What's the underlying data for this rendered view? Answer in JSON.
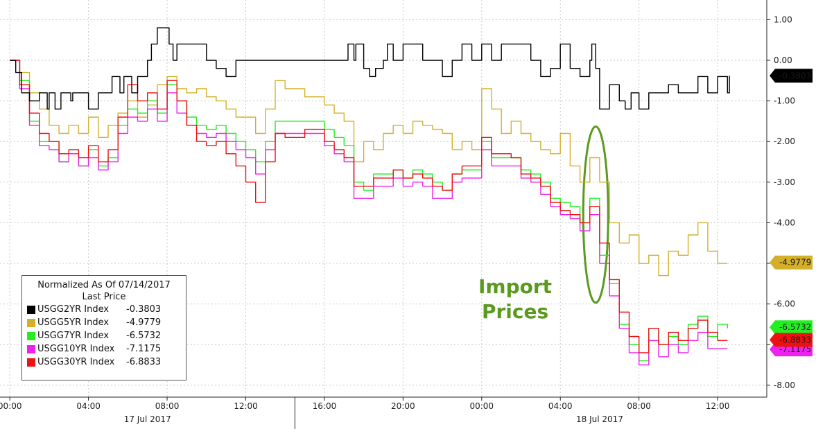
{
  "chart_data": {
    "type": "line",
    "legend": {
      "title": "Normalized As Of 07/14/2017",
      "subtitle": "Last Price",
      "placement": "bottom-left"
    },
    "series": [
      {
        "name": "USGG2YR Index",
        "color": "#000000",
        "last": "-0.3803",
        "last_value": -0.3803,
        "x": [
          0,
          0.3,
          0.6,
          1,
          1.5,
          1.9,
          2,
          2.3,
          2.6,
          3.1,
          3.2,
          3.5,
          4,
          4.5,
          5.1,
          5.2,
          5.6,
          5.8,
          6.2,
          6.5,
          7,
          7.2,
          7.5,
          8,
          8.1,
          8.3,
          8.5,
          9,
          9.5,
          10,
          10.5,
          11,
          11.5,
          12,
          12.5,
          13,
          14,
          14.5,
          15,
          16,
          17,
          17.2,
          17.5,
          17.6,
          18,
          18.3,
          18.6,
          19,
          19.2,
          19.5,
          20,
          21,
          21.5,
          22,
          22.5,
          23,
          23.5,
          24,
          24.5,
          25,
          26,
          26.5,
          27,
          27.5,
          28,
          28.5,
          29,
          29.5,
          29.6,
          29.8,
          30,
          30.5,
          31,
          31.3,
          31.6,
          32,
          32.5,
          33,
          33.5,
          34,
          34.5,
          35,
          35.5,
          36,
          36.5,
          36.6
        ],
        "y": [
          0,
          -0.3,
          -0.8,
          -1.0,
          -0.8,
          -1.2,
          -0.8,
          -1.2,
          -0.8,
          -1.0,
          -0.8,
          -0.8,
          -1.2,
          -0.8,
          -0.8,
          -0.4,
          -0.8,
          -0.4,
          -0.8,
          -0.4,
          0,
          0.4,
          0.8,
          0.8,
          0.4,
          0,
          0.4,
          0.4,
          0.4,
          0,
          -0.2,
          -0.4,
          0,
          0,
          0,
          0,
          0,
          0,
          0,
          0,
          0,
          0.4,
          0,
          0.4,
          -0.2,
          -0.4,
          -0.2,
          0,
          0.4,
          0,
          0.4,
          0,
          0,
          -0.4,
          0,
          0.4,
          0,
          0.4,
          0,
          0.4,
          0.4,
          0,
          -0.4,
          -0.2,
          0.4,
          -0.2,
          -0.4,
          0,
          0.4,
          -0.2,
          -1.2,
          -0.6,
          -1.0,
          -1.2,
          -0.8,
          -1.2,
          -0.8,
          -0.8,
          -0.6,
          -0.8,
          -0.8,
          -0.4,
          -0.8,
          -0.4,
          -0.8,
          -0.38
        ]
      },
      {
        "name": "USGG5YR Index",
        "color": "#d4b02a",
        "last": "-4.9779",
        "last_value": -4.9779,
        "x": [
          0,
          0.5,
          1,
          1.5,
          2,
          2.5,
          3,
          3.5,
          4,
          4.5,
          5,
          5.5,
          6,
          6.5,
          7,
          7.5,
          8,
          8.5,
          9,
          9.5,
          10,
          10.5,
          11,
          11.5,
          12,
          12.5,
          13,
          13.5,
          14,
          15,
          16,
          16.5,
          17,
          17.5,
          18,
          18.5,
          19,
          19.5,
          20,
          20.5,
          21,
          21.5,
          22,
          22.5,
          23,
          23.5,
          24,
          24.5,
          25,
          25.5,
          26,
          26.5,
          27,
          27.5,
          28,
          28.5,
          29,
          29.5,
          30,
          30.5,
          31,
          31.5,
          32,
          32.5,
          33,
          33.5,
          34,
          34.5,
          35,
          35.5,
          36,
          36.5
        ],
        "y": [
          0,
          -0.3,
          -0.8,
          -1.2,
          -1.6,
          -1.8,
          -1.6,
          -1.8,
          -1.4,
          -1.9,
          -1.6,
          -1.3,
          -1.0,
          -1.4,
          -1.1,
          -0.6,
          -0.4,
          -0.7,
          -0.8,
          -0.7,
          -0.9,
          -1.0,
          -1.2,
          -1.4,
          -1.4,
          -1.8,
          -1.2,
          -0.5,
          -0.7,
          -0.9,
          -1.1,
          -1.3,
          -1.5,
          -2.5,
          -2.0,
          -2.2,
          -1.8,
          -1.6,
          -1.8,
          -1.5,
          -1.6,
          -1.7,
          -1.8,
          -2.2,
          -2.0,
          -2.2,
          -0.7,
          -1.2,
          -1.8,
          -1.5,
          -1.8,
          -2.0,
          -2.2,
          -2.3,
          -1.8,
          -2.6,
          -3.0,
          -2.4,
          -3.0,
          -4.0,
          -4.5,
          -4.3,
          -5.0,
          -4.8,
          -5.3,
          -4.7,
          -4.8,
          -4.3,
          -4.0,
          -4.7,
          -5.0,
          -5.0
        ]
      },
      {
        "name": "USGG7YR Index",
        "color": "#22ee22",
        "last": "-6.5732",
        "last_value": -6.5732,
        "x": [
          0,
          0.5,
          1,
          1.5,
          2,
          2.5,
          3,
          3.5,
          4,
          4.5,
          5,
          5.5,
          6,
          6.5,
          7,
          7.5,
          8,
          8.5,
          9,
          9.5,
          10,
          10.5,
          11,
          11.5,
          12,
          12.5,
          13,
          13.5,
          14,
          15,
          16,
          16.5,
          17,
          17.5,
          18,
          18.5,
          19,
          19.5,
          20,
          20.5,
          21,
          21.5,
          22,
          22.5,
          23,
          23.5,
          24,
          24.5,
          25,
          25.5,
          26,
          26.5,
          27,
          27.5,
          28,
          28.5,
          29,
          29.5,
          30,
          30.5,
          31,
          31.5,
          32,
          32.5,
          33,
          33.5,
          34,
          34.5,
          35,
          35.5,
          36,
          36.5
        ],
        "y": [
          0,
          -0.5,
          -1.5,
          -2.0,
          -2.0,
          -2.5,
          -2.3,
          -2.6,
          -2.2,
          -2.6,
          -2.4,
          -1.6,
          -1.2,
          -1.3,
          -1.0,
          -1.3,
          -0.6,
          -1.0,
          -1.4,
          -1.6,
          -1.7,
          -1.6,
          -1.8,
          -2.0,
          -2.2,
          -2.5,
          -2.0,
          -1.5,
          -1.5,
          -1.5,
          -1.7,
          -1.9,
          -2.1,
          -3.0,
          -3.2,
          -2.8,
          -2.8,
          -2.7,
          -2.9,
          -2.7,
          -2.8,
          -3.0,
          -3.2,
          -2.8,
          -2.7,
          -2.7,
          -2.0,
          -2.4,
          -2.4,
          -2.4,
          -2.7,
          -2.8,
          -3.0,
          -3.4,
          -3.5,
          -3.6,
          -4.0,
          -3.4,
          -4.8,
          -5.5,
          -6.5,
          -7.0,
          -7.4,
          -6.6,
          -7.0,
          -6.8,
          -7.0,
          -6.5,
          -6.3,
          -6.8,
          -6.5,
          -6.6
        ]
      },
      {
        "name": "USGG10YR Index",
        "color": "#ee22ee",
        "last": "-7.1175",
        "last_value": -7.1175,
        "x": [
          0,
          0.5,
          1,
          1.5,
          2,
          2.5,
          3,
          3.5,
          4,
          4.5,
          5,
          5.5,
          6,
          6.5,
          7,
          7.5,
          8,
          8.5,
          9,
          9.5,
          10,
          10.5,
          11,
          11.5,
          12,
          12.5,
          13,
          13.5,
          14,
          15,
          16,
          16.5,
          17,
          17.5,
          18,
          18.5,
          19,
          19.5,
          20,
          20.5,
          21,
          21.5,
          22,
          22.5,
          23,
          23.5,
          24,
          24.5,
          25,
          25.5,
          26,
          26.5,
          27,
          27.5,
          28,
          28.5,
          29,
          29.5,
          30,
          30.5,
          31,
          31.5,
          32,
          32.5,
          33,
          33.5,
          34,
          34.5,
          35,
          35.5,
          36,
          36.5
        ],
        "y": [
          0,
          -0.7,
          -1.6,
          -2.1,
          -2.2,
          -2.5,
          -2.3,
          -2.6,
          -2.4,
          -2.7,
          -2.5,
          -1.8,
          -1.4,
          -1.5,
          -1.2,
          -1.5,
          -0.8,
          -1.3,
          -1.6,
          -1.8,
          -1.9,
          -1.8,
          -2.0,
          -2.2,
          -2.4,
          -2.8,
          -2.2,
          -1.8,
          -1.8,
          -1.8,
          -2.1,
          -2.3,
          -2.5,
          -3.4,
          -3.4,
          -3.1,
          -3.1,
          -2.9,
          -3.1,
          -3.0,
          -3.1,
          -3.4,
          -3.4,
          -3.0,
          -2.9,
          -2.9,
          -2.2,
          -2.6,
          -2.6,
          -2.6,
          -2.9,
          -3.0,
          -3.3,
          -3.6,
          -3.8,
          -3.9,
          -4.2,
          -3.8,
          -5.0,
          -5.8,
          -6.6,
          -7.2,
          -7.5,
          -6.9,
          -7.3,
          -7.0,
          -7.2,
          -6.9,
          -6.7,
          -7.1,
          -7.1,
          -7.1
        ]
      },
      {
        "name": "USGG30YR Index",
        "color": "#ee1111",
        "last": "-6.8833",
        "last_value": -6.8833,
        "x": [
          0,
          0.5,
          1,
          1.5,
          2,
          2.5,
          3,
          3.5,
          4,
          4.5,
          5,
          5.5,
          6,
          6.5,
          7,
          7.5,
          8,
          8.5,
          9,
          9.5,
          10,
          10.5,
          11,
          11.5,
          12,
          12.5,
          13,
          13.5,
          14,
          15,
          16,
          16.5,
          17,
          17.5,
          18,
          18.5,
          19,
          19.5,
          20,
          20.5,
          21,
          21.5,
          22,
          22.5,
          23,
          23.5,
          24,
          24.5,
          25,
          25.5,
          26,
          26.5,
          27,
          27.5,
          28,
          28.5,
          29,
          29.5,
          30,
          30.5,
          31,
          31.5,
          32,
          32.5,
          33,
          33.5,
          34,
          34.5,
          35,
          35.5,
          36,
          36.5
        ],
        "y": [
          0,
          -0.6,
          -1.3,
          -1.8,
          -2.0,
          -2.3,
          -2.2,
          -2.4,
          -2.1,
          -2.5,
          -2.2,
          -1.4,
          -0.6,
          -1.0,
          -0.8,
          -1.2,
          -0.5,
          -1.0,
          -1.6,
          -2.0,
          -2.1,
          -2.0,
          -2.3,
          -2.6,
          -3.0,
          -3.5,
          -2.5,
          -1.8,
          -1.9,
          -1.7,
          -2.0,
          -2.2,
          -2.4,
          -3.1,
          -3.1,
          -2.9,
          -2.9,
          -2.7,
          -2.9,
          -2.8,
          -2.9,
          -3.1,
          -3.2,
          -2.8,
          -2.6,
          -2.6,
          -1.9,
          -2.3,
          -2.3,
          -2.4,
          -2.8,
          -2.9,
          -3.1,
          -3.5,
          -3.7,
          -3.8,
          -4.0,
          -3.6,
          -4.5,
          -5.4,
          -6.2,
          -6.8,
          -7.2,
          -6.6,
          -7.0,
          -6.7,
          -6.9,
          -6.6,
          -6.4,
          -6.7,
          -6.9,
          -6.9
        ]
      }
    ],
    "y_axis": {
      "ticks": [
        "1.00",
        "0.00",
        "-1.00",
        "-2.00",
        "-3.00",
        "-4.00",
        "-6.00",
        "-8.00"
      ],
      "tick_values": [
        1,
        0,
        -1,
        -2,
        -3,
        -4,
        -6,
        -8
      ],
      "ylim": [
        -8.3,
        1.5
      ],
      "position": "right"
    },
    "x_axis": {
      "ticks": [
        "00:00",
        "04:00",
        "08:00",
        "12:00",
        "16:00",
        "20:00",
        "00:00",
        "04:00",
        "08:00",
        "12:00"
      ],
      "tick_values": [
        0,
        4,
        8,
        12,
        16,
        20,
        24,
        28,
        32,
        36
      ],
      "xlim": [
        -0.5,
        38.5
      ],
      "day_labels": [
        {
          "label": "17 Jul 2017",
          "at": 7
        },
        {
          "label": "18 Jul 2017",
          "at": 30
        }
      ]
    },
    "grid": true,
    "annotation": {
      "line1": "Import",
      "line2": "Prices",
      "color": "#5a9a1e"
    }
  }
}
